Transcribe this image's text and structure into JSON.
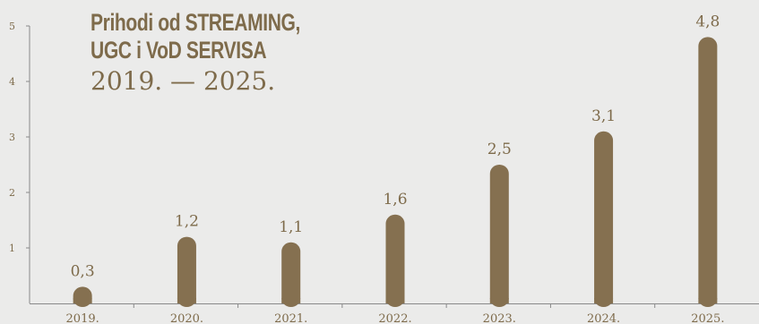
{
  "chart_data": {
    "type": "bar",
    "title_lines": [
      "Prihodi od STREAMING,",
      "UGC i VoD SERVISA"
    ],
    "subtitle": "2019. — 2025.",
    "categories": [
      "2019.",
      "2020.",
      "2021.",
      "2022.",
      "2023.",
      "2024.",
      "2025."
    ],
    "values": [
      0.3,
      1.2,
      1.1,
      1.6,
      2.5,
      3.1,
      4.8
    ],
    "value_labels": [
      "0,3",
      "1,2",
      "1,1",
      "1,6",
      "2,5",
      "3,1",
      "4,8"
    ],
    "y_ticks": [
      "1",
      "2",
      "3",
      "4",
      "5"
    ],
    "ylim": [
      0,
      5
    ],
    "grid": false,
    "bar_color": "#857050",
    "text_color": "#7e6b4b",
    "axis_color": "#8a8a8a"
  }
}
